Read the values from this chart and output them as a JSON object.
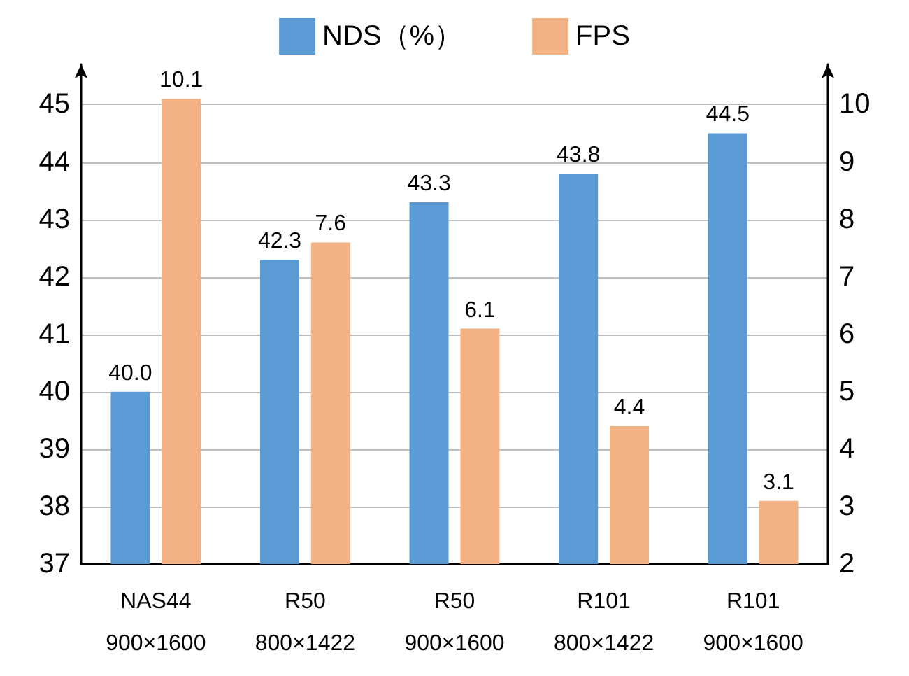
{
  "chart_data": {
    "type": "bar",
    "categories": [
      "NAS44\n900×1600",
      "R50\n800×1422",
      "R50\n900×1600",
      "R101\n800×1422",
      "R101\n900×1600"
    ],
    "series": [
      {
        "name": "NDS（%）",
        "color": "#5b9bd5",
        "values": [
          40.0,
          42.3,
          43.3,
          43.8,
          44.5
        ],
        "value_labels": [
          "40.0",
          "42.3",
          "43.3",
          "43.8",
          "44.5"
        ]
      },
      {
        "name": "FPS",
        "color": "#f4b183",
        "axis": "y2",
        "values": [
          10.1,
          7.6,
          6.1,
          4.4,
          3.1
        ],
        "value_labels": [
          "10.1",
          "7.6",
          "6.1",
          "4.4",
          "3.1"
        ]
      }
    ],
    "ylim": [
      37,
      45.7
    ],
    "yticks": [
      37,
      38,
      39,
      40,
      41,
      42,
      43,
      44,
      45
    ],
    "y2lim": [
      2,
      10.7
    ],
    "y2ticks": [
      2,
      3,
      4,
      5,
      6,
      7,
      8,
      9,
      10
    ],
    "grid": "y",
    "legend": "top"
  }
}
